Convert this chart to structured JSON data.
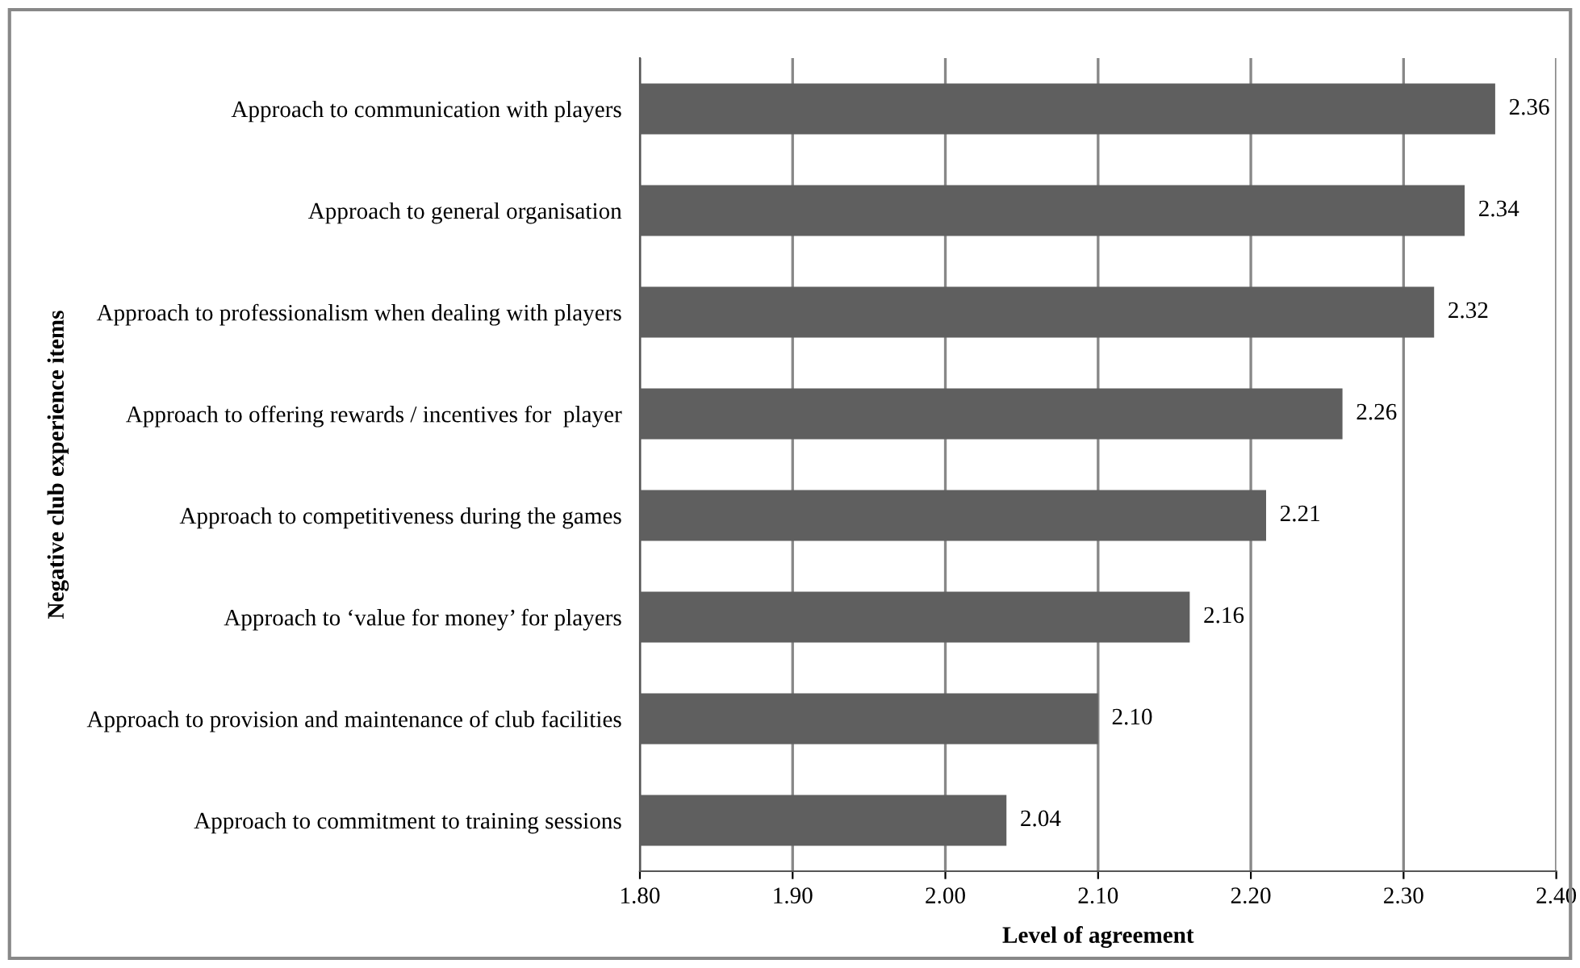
{
  "chart_data": {
    "type": "bar",
    "orientation": "horizontal",
    "categories": [
      "Approach to communication with players",
      "Approach to general organisation",
      "Approach to professionalism when dealing with players",
      "Approach to offering rewards / incentives for  player",
      "Approach to competitiveness during the games",
      "Approach to ‘value for money’ for players",
      "Approach to provision and maintenance of club facilities",
      "Approach to commitment to training sessions"
    ],
    "values": [
      2.36,
      2.34,
      2.32,
      2.26,
      2.21,
      2.16,
      2.1,
      2.04
    ],
    "value_labels": [
      "2.36",
      "2.34",
      "2.32",
      "2.26",
      "2.21",
      "2.16",
      "2.10",
      "2.04"
    ],
    "color": "#5f5f5f",
    "xlim": [
      1.8,
      2.4
    ],
    "xticks": [
      {
        "value": 1.8,
        "label": "1.80"
      },
      {
        "value": 1.9,
        "label": "1.90"
      },
      {
        "value": 2.0,
        "label": "2.00"
      },
      {
        "value": 2.1,
        "label": "2.10"
      },
      {
        "value": 2.2,
        "label": "2.20"
      },
      {
        "value": 2.3,
        "label": "2.30"
      },
      {
        "value": 2.4,
        "label": "2.40"
      }
    ],
    "xlabel": "Level of agreement",
    "ylabel": "Negative club experience items",
    "grid": "x",
    "legend": false
  }
}
